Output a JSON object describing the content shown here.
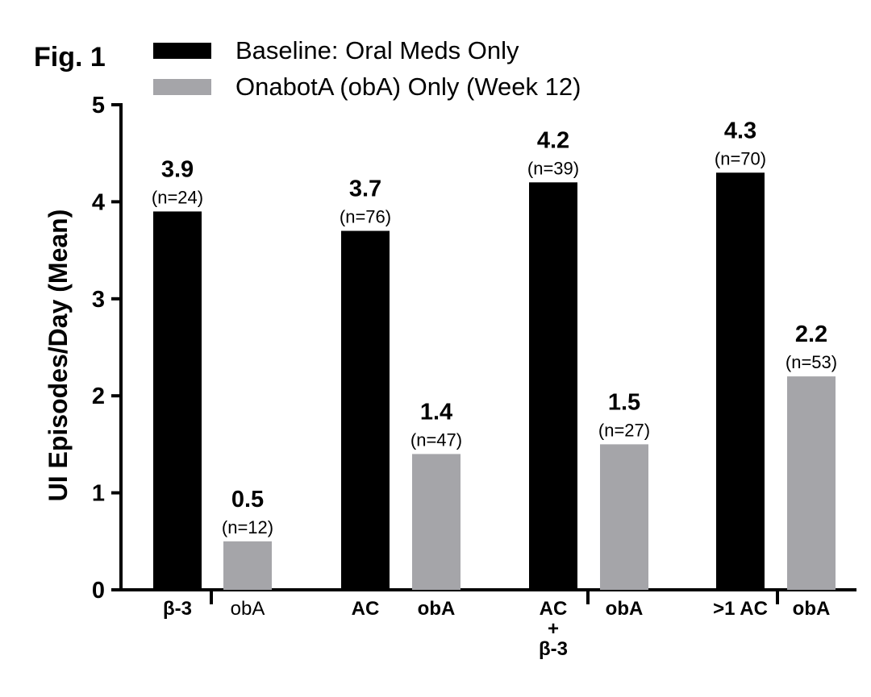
{
  "figure_label": "Fig. 1",
  "chart_data": {
    "type": "bar",
    "ylabel": "UI Episodes/Day (Mean)",
    "xlabel": "",
    "ylim": [
      0,
      5
    ],
    "yticks": [
      "0",
      "1",
      "2",
      "3",
      "4",
      "5"
    ],
    "legend_position": "top-left",
    "series": [
      {
        "name": "Baseline: Oral Meds Only",
        "color": "#000000"
      },
      {
        "name": "OnabotA (obA) Only (Week 12)",
        "color": "#a5a5a9"
      }
    ],
    "bars": [
      {
        "category": "β-3",
        "series": 0,
        "value": 3.9,
        "label": "3.9",
        "n": "(n=24)",
        "bold_category": true
      },
      {
        "category": "obA",
        "series": 1,
        "value": 0.5,
        "label": "0.5",
        "n": "(n=12)",
        "bold_category": false
      },
      {
        "category": "AC",
        "series": 0,
        "value": 3.7,
        "label": "3.7",
        "n": "(n=76)",
        "bold_category": true
      },
      {
        "category": "obA",
        "series": 1,
        "value": 1.4,
        "label": "1.4",
        "n": "(n=47)",
        "bold_category": true
      },
      {
        "category": "AC\n+\nβ-3",
        "series": 0,
        "value": 4.2,
        "label": "4.2",
        "n": "(n=39)",
        "bold_category": true
      },
      {
        "category": "obA",
        "series": 1,
        "value": 1.5,
        "label": "1.5",
        "n": "(n=27)",
        "bold_category": true
      },
      {
        "category": ">1 AC",
        "series": 0,
        "value": 4.3,
        "label": "4.3",
        "n": "(n=70)",
        "bold_category": true
      },
      {
        "category": "obA",
        "series": 1,
        "value": 2.2,
        "label": "2.2",
        "n": "(n=53)",
        "bold_category": true
      }
    ]
  }
}
